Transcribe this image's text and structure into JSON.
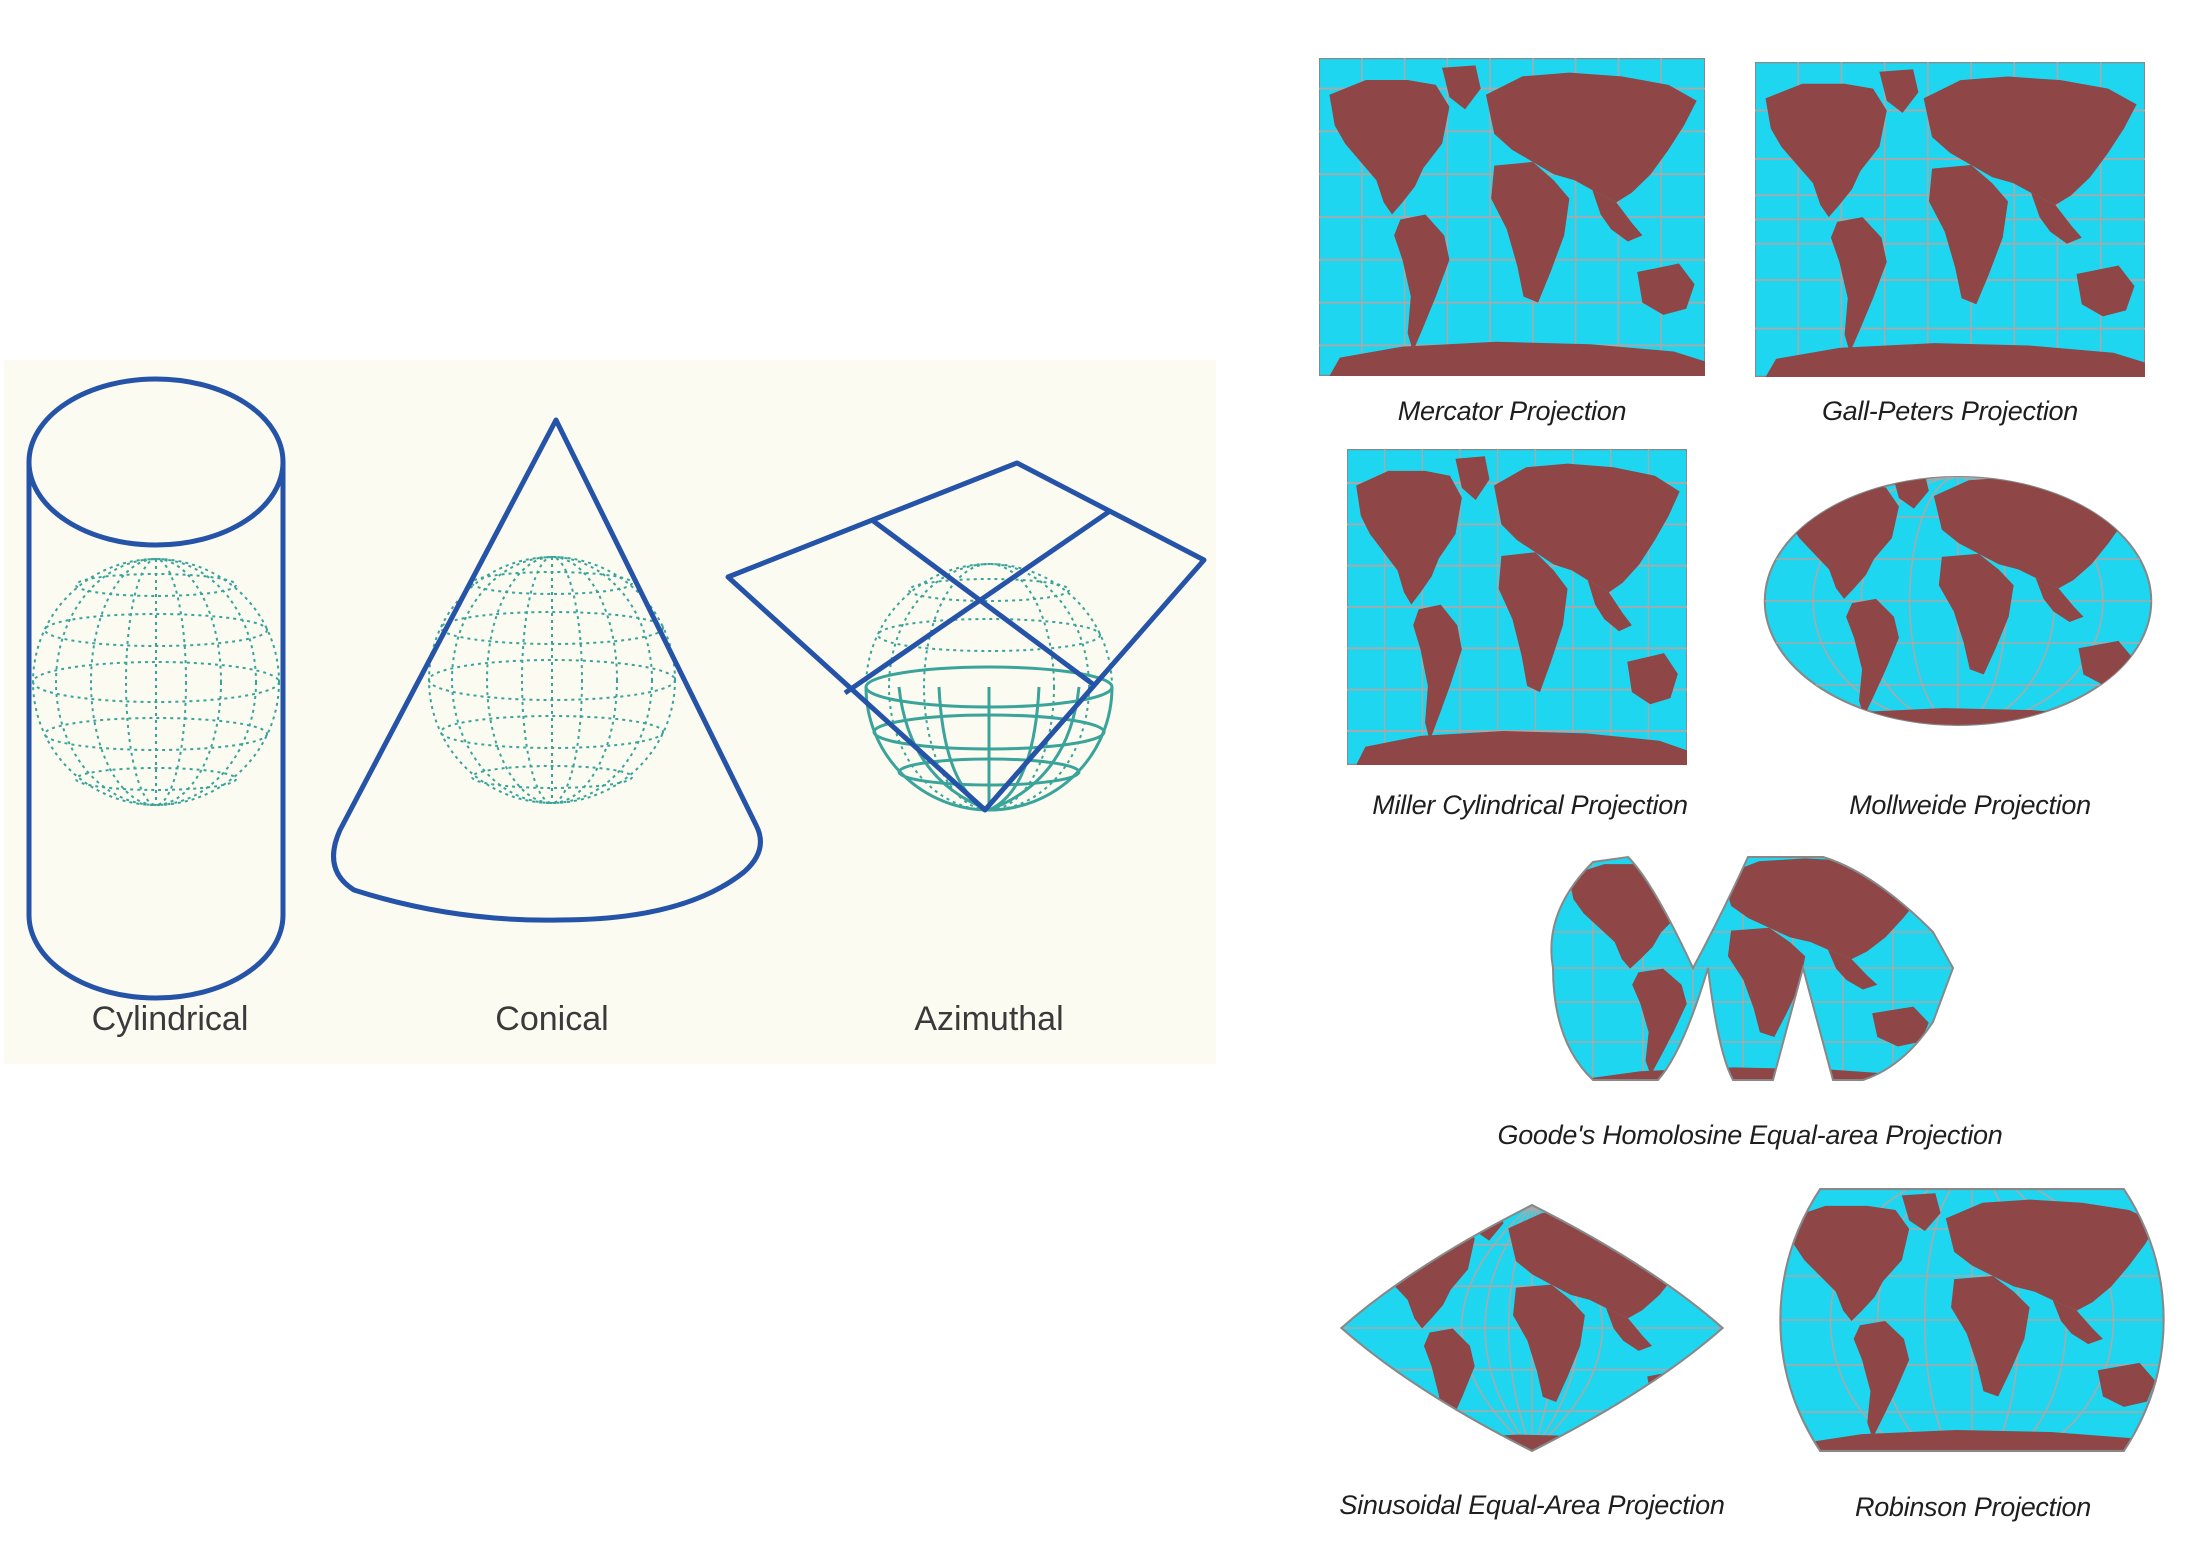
{
  "surfaces": [
    {
      "id": "cylindrical",
      "label": "Cylindrical"
    },
    {
      "id": "conical",
      "label": "Conical"
    },
    {
      "id": "azimuthal",
      "label": "Azimuthal"
    }
  ],
  "projections": [
    {
      "id": "mercator",
      "caption": "Mercator Projection"
    },
    {
      "id": "gall-peters",
      "caption": "Gall-Peters Projection"
    },
    {
      "id": "miller",
      "caption": "Miller Cylindrical Projection"
    },
    {
      "id": "mollweide",
      "caption": "Mollweide Projection"
    },
    {
      "id": "goode",
      "caption": "Goode's Homolosine Equal-area Projection"
    },
    {
      "id": "sinusoidal",
      "caption": "Sinusoidal Equal-Area Projection"
    },
    {
      "id": "robinson",
      "caption": "Robinson Projection"
    }
  ],
  "colors": {
    "ocean": "#1fd6f0",
    "land": "#8f4646",
    "graticule": "#a9a9a9",
    "outline": "#2553a8",
    "globe": "#3aa49a",
    "panel": "#fbfbf2"
  }
}
